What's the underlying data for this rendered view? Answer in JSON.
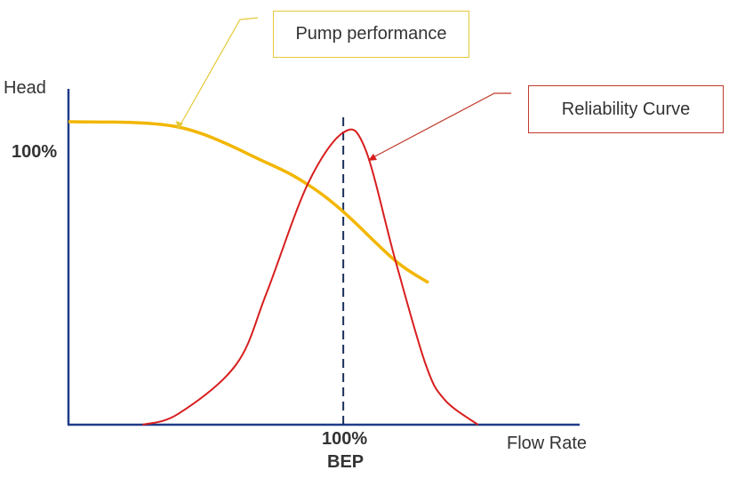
{
  "chart_data": {
    "type": "line",
    "ylabel": "Head",
    "xlabel": "Flow Rate",
    "y_tick": "100%",
    "x_tick": "100%",
    "x_tick_sub": "BEP",
    "xlim": [
      0,
      186
    ],
    "ylim": [
      0,
      123
    ],
    "bep_x": 100,
    "grid": false,
    "series": [
      {
        "name": "Pump performance",
        "color": "#f2b600",
        "x": [
          0,
          40,
          72,
          87,
          100,
          119,
          131
        ],
        "y": [
          111,
          109,
          96,
          88,
          78,
          60,
          52
        ]
      },
      {
        "name": "Reliability Curve",
        "color": "#d81e1e",
        "x": [
          27,
          40,
          61,
          72,
          87,
          100,
          108,
          119,
          130,
          137,
          149
        ],
        "y": [
          0,
          4,
          22,
          48,
          88,
          107,
          101,
          60,
          22,
          9,
          0
        ]
      }
    ],
    "annotations": [
      {
        "text": "Pump performance",
        "border": "#e6c93a"
      },
      {
        "text": "Reliability Curve",
        "border": "#c0392b"
      }
    ],
    "axis_color": "#1f3c88"
  }
}
